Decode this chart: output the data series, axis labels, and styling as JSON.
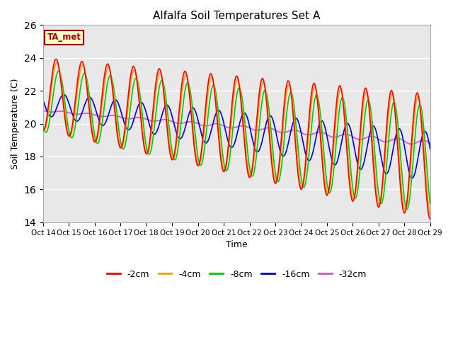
{
  "title": "Alfalfa Soil Temperatures Set A",
  "xlabel": "Time",
  "ylabel": "Soil Temperature (C)",
  "xlim": [
    0,
    15
  ],
  "ylim": [
    14,
    26
  ],
  "yticks": [
    14,
    16,
    18,
    20,
    22,
    24,
    26
  ],
  "xtick_labels": [
    "Oct 14",
    "Oct 15",
    "Oct 16",
    "Oct 17",
    "Oct 18",
    "Oct 19",
    "Oct 20",
    "Oct 21",
    "Oct 22",
    "Oct 23",
    "Oct 24",
    "Oct 25",
    "Oct 26",
    "Oct 27",
    "Oct 28",
    "Oct 29"
  ],
  "background_color": "#e8e8e8",
  "lines": {
    "-2cm": {
      "color": "#ff0000",
      "lw": 1.2
    },
    "-4cm": {
      "color": "#ff9900",
      "lw": 1.2
    },
    "-8cm": {
      "color": "#00cc00",
      "lw": 1.2
    },
    "-16cm": {
      "color": "#0000dd",
      "lw": 1.2
    },
    "-32cm": {
      "color": "#cc55cc",
      "lw": 1.2
    }
  },
  "legend_order": [
    "-2cm",
    "-4cm",
    "-8cm",
    "-16cm",
    "-32cm"
  ],
  "ta_met_label": "TA_met",
  "ta_met_color": "#aa0000",
  "ta_met_bg": "#ffffcc",
  "ta_met_border": "#aa0000"
}
